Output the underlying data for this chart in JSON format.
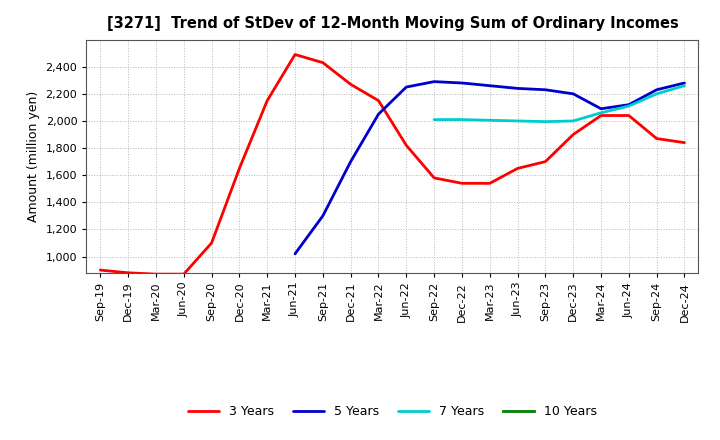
{
  "title": "[3271]  Trend of StDev of 12-Month Moving Sum of Ordinary Incomes",
  "ylabel": "Amount (million yen)",
  "background_color": "#ffffff",
  "grid_color": "#b0b0b0",
  "ylim": [
    880,
    2600
  ],
  "yticks": [
    1000,
    1200,
    1400,
    1600,
    1800,
    2000,
    2200,
    2400
  ],
  "x_labels": [
    "Sep-19",
    "Dec-19",
    "Mar-20",
    "Jun-20",
    "Sep-20",
    "Dec-20",
    "Mar-21",
    "Jun-21",
    "Sep-21",
    "Dec-21",
    "Mar-22",
    "Jun-22",
    "Sep-22",
    "Dec-22",
    "Mar-23",
    "Jun-23",
    "Sep-23",
    "Dec-23",
    "Mar-24",
    "Jun-24",
    "Sep-24",
    "Dec-24"
  ],
  "series_3yr": [
    900,
    880,
    870,
    870,
    1100,
    1650,
    2150,
    2490,
    2430,
    2270,
    2150,
    1820,
    1580,
    1540,
    1540,
    1650,
    1700,
    1900,
    2040,
    2040,
    1870,
    1840
  ],
  "series_5yr": [
    null,
    null,
    null,
    null,
    null,
    null,
    null,
    1020,
    1300,
    1700,
    2050,
    2250,
    2290,
    2280,
    2260,
    2240,
    2230,
    2200,
    2090,
    2120,
    2230,
    2280
  ],
  "series_7yr": [
    null,
    null,
    null,
    null,
    null,
    null,
    null,
    null,
    null,
    null,
    null,
    null,
    2010,
    2010,
    2005,
    2000,
    1995,
    2000,
    2060,
    2110,
    2200,
    2260
  ],
  "series_10yr": [
    null,
    null,
    null,
    null,
    null,
    null,
    null,
    null,
    null,
    null,
    null,
    null,
    null,
    null,
    null,
    null,
    null,
    null,
    null,
    null,
    null,
    null
  ],
  "colors": {
    "3 Years": "#ff0000",
    "5 Years": "#0000cc",
    "7 Years": "#00cccc",
    "10 Years": "#008000"
  },
  "legend_entries": [
    "3 Years",
    "5 Years",
    "7 Years",
    "10 Years"
  ]
}
